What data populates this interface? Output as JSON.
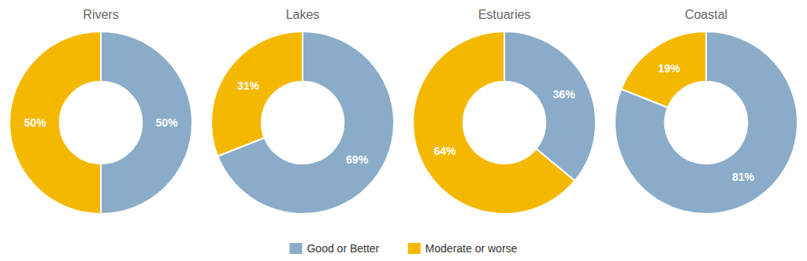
{
  "chart_data": [
    {
      "type": "pie",
      "title": "Rivers",
      "categories": [
        "Good or Better",
        "Moderate or worse"
      ],
      "values": [
        50,
        50
      ],
      "value_labels": [
        "50%",
        "50%"
      ],
      "colors": [
        "#8AACC8",
        "#F5B800"
      ],
      "data_labels": true,
      "legend": "bottom"
    },
    {
      "type": "pie",
      "title": "Lakes",
      "categories": [
        "Good or Better",
        "Moderate or worse"
      ],
      "values": [
        69,
        31
      ],
      "value_labels": [
        "69%",
        "31%"
      ],
      "colors": [
        "#8AACC8",
        "#F5B800"
      ],
      "data_labels": true
    },
    {
      "type": "pie",
      "title": "Estuaries",
      "categories": [
        "Good or Better",
        "Moderate or worse"
      ],
      "values": [
        36,
        64
      ],
      "value_labels": [
        "36%",
        "64%"
      ],
      "colors": [
        "#8AACC8",
        "#F5B800"
      ],
      "data_labels": true
    },
    {
      "type": "pie",
      "title": "Coastal",
      "categories": [
        "Good or Better",
        "Moderate or worse"
      ],
      "values": [
        81,
        19
      ],
      "value_labels": [
        "81%",
        "19%"
      ],
      "colors": [
        "#8AACC8",
        "#F5B800"
      ],
      "data_labels": true
    }
  ]
}
